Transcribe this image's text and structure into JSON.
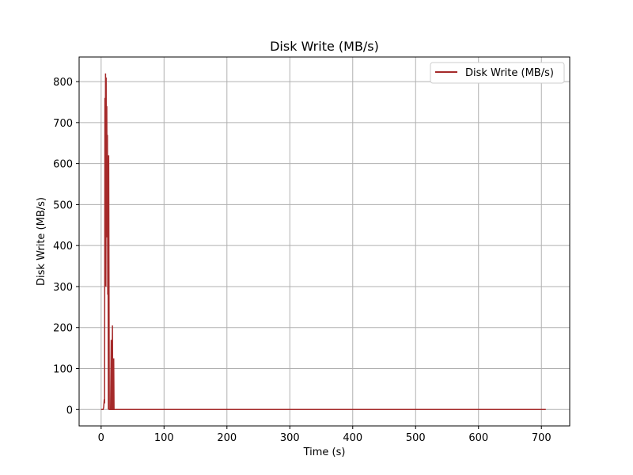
{
  "chart_data": {
    "type": "line",
    "title": "Disk Write (MB/s)",
    "xlabel": "Time (s)",
    "ylabel": "Disk Write (MB/s)",
    "xlim": [
      -35,
      745
    ],
    "ylim": [
      -40,
      860
    ],
    "xticks": [
      0,
      100,
      200,
      300,
      400,
      500,
      600,
      700
    ],
    "yticks": [
      0,
      100,
      200,
      300,
      400,
      500,
      600,
      700,
      800
    ],
    "grid": true,
    "legend_position": "top-right",
    "color": "#a52a2a",
    "series": [
      {
        "name": "Disk Write (MB/s)",
        "points": [
          [
            0,
            0
          ],
          [
            3,
            0
          ],
          [
            4,
            5
          ],
          [
            5,
            25
          ],
          [
            5.5,
            15
          ],
          [
            6,
            760
          ],
          [
            6.5,
            400
          ],
          [
            7,
            820
          ],
          [
            7.5,
            300
          ],
          [
            8,
            810
          ],
          [
            8.5,
            420
          ],
          [
            9,
            740
          ],
          [
            9.5,
            450
          ],
          [
            10,
            670
          ],
          [
            10.5,
            280
          ],
          [
            11,
            400
          ],
          [
            11.5,
            0
          ],
          [
            12,
            620
          ],
          [
            12.5,
            300
          ],
          [
            13,
            0
          ],
          [
            14,
            0
          ],
          [
            15,
            0
          ],
          [
            16,
            170
          ],
          [
            16.5,
            0
          ],
          [
            17,
            0
          ],
          [
            18,
            205
          ],
          [
            18.5,
            0
          ],
          [
            19,
            0
          ],
          [
            20,
            125
          ],
          [
            20.5,
            0
          ],
          [
            21,
            0
          ],
          [
            22,
            0
          ],
          [
            50,
            0
          ],
          [
            100,
            0
          ],
          [
            200,
            0
          ],
          [
            300,
            0
          ],
          [
            400,
            0
          ],
          [
            500,
            0
          ],
          [
            600,
            0
          ],
          [
            700,
            0
          ],
          [
            707,
            0
          ]
        ]
      }
    ]
  }
}
